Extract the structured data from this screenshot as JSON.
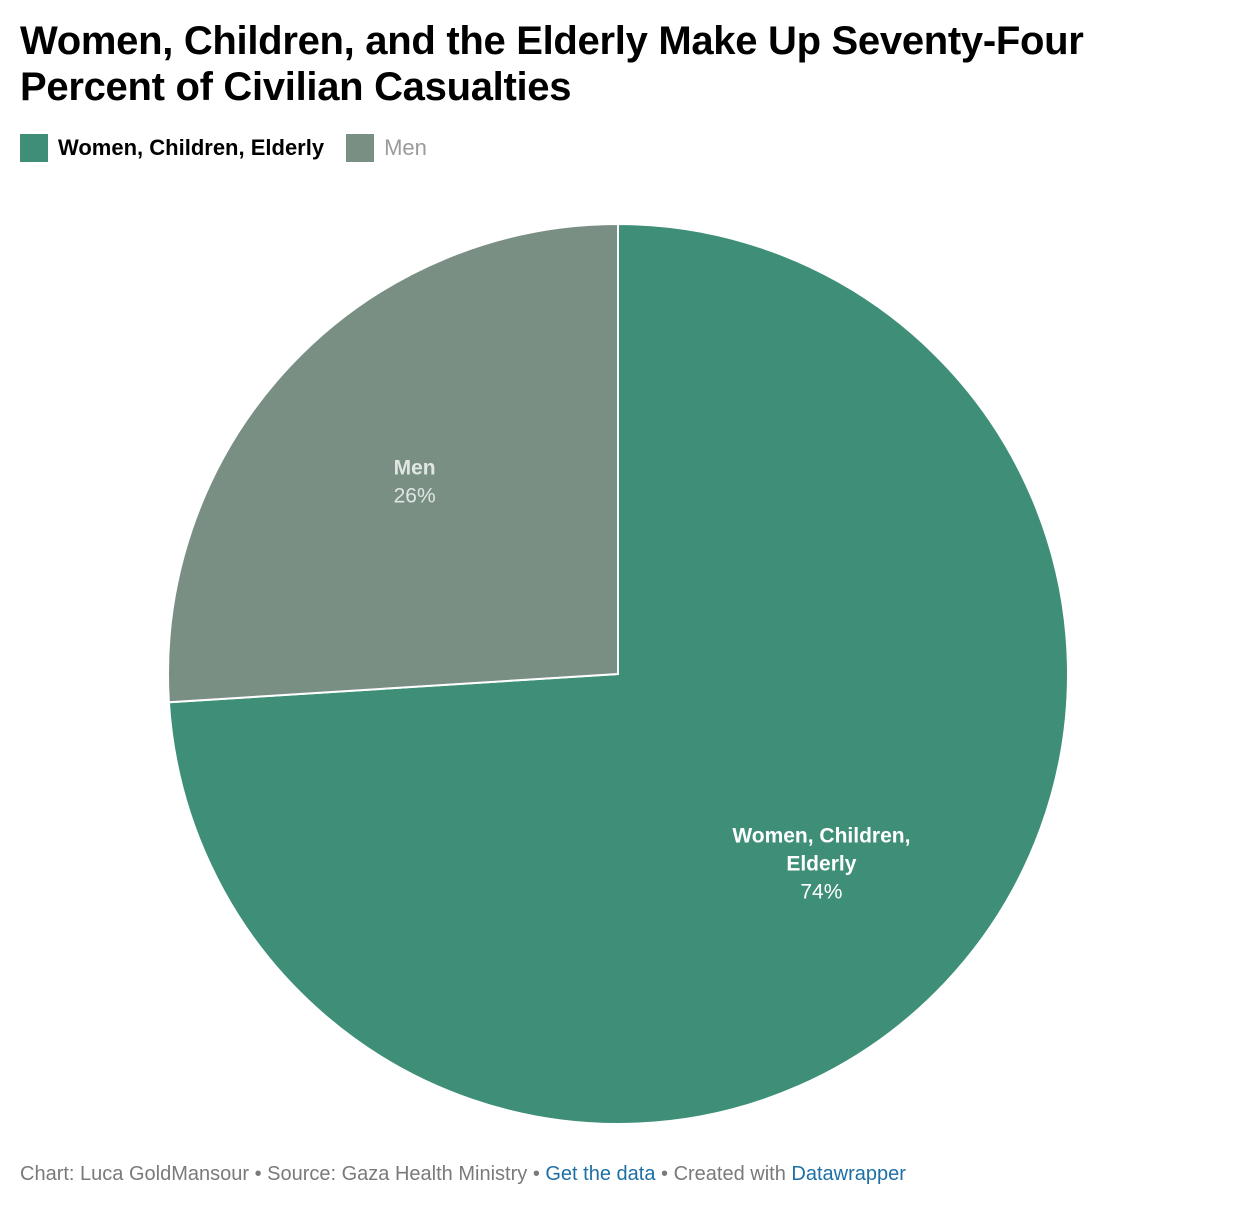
{
  "title": "Women, Children, and the Elderly Make Up Seventy-Four Percent of Civilian Casualties",
  "legend": [
    {
      "label": "Women, Children, Elderly",
      "color": "#3f8f78"
    },
    {
      "label": "Men",
      "color": "#7a8f84"
    }
  ],
  "chart_data": {
    "type": "pie",
    "title": "Women, Children, and the Elderly Make Up Seventy-Four Percent of Civilian Casualties",
    "legend_position": "top-left",
    "slices": [
      {
        "label": "Women, Children, Elderly",
        "label_lines": [
          "Women, Children,",
          "Elderly"
        ],
        "value": 74,
        "value_label": "74%",
        "color": "#3f8f78",
        "label_color": "#ffffff"
      },
      {
        "label": "Men",
        "label_lines": [
          "Men"
        ],
        "value": 26,
        "value_label": "26%",
        "color": "#7a8f84",
        "label_color": "#e0e6e2"
      }
    ]
  },
  "footer": {
    "chart_credit": "Chart: Luca GoldMansour",
    "source": "Source: Gaza Health Ministry",
    "get_data": "Get the data",
    "created_with": "Created with",
    "tool": "Datawrapper"
  }
}
